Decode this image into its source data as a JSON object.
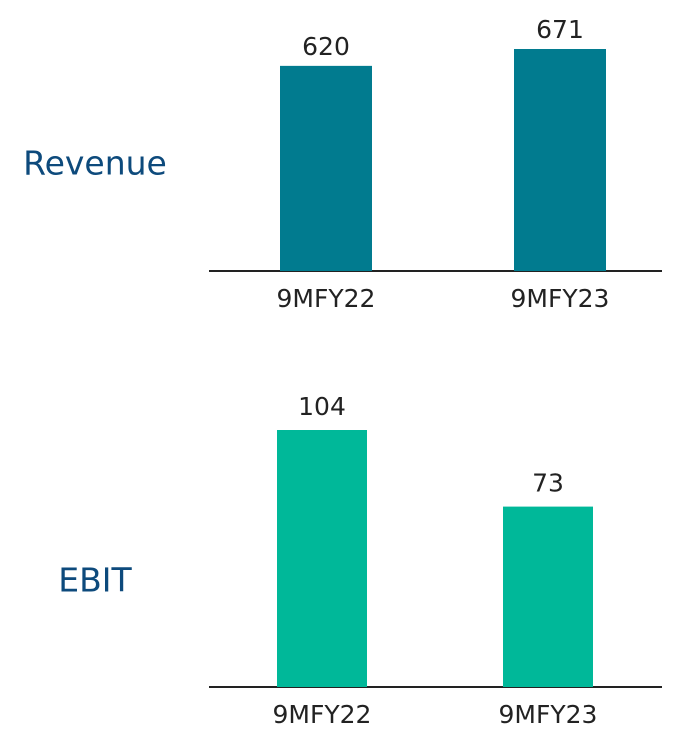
{
  "chart_data": [
    {
      "type": "bar",
      "title": "Revenue",
      "categories": [
        "9MFY22",
        "9MFY23"
      ],
      "values": [
        620,
        671
      ],
      "color": "#017b8f"
    },
    {
      "type": "bar",
      "title": "EBIT",
      "categories": [
        "9MFY22",
        "9MFY23"
      ],
      "values": [
        104,
        73
      ],
      "color": "#00b899"
    }
  ]
}
